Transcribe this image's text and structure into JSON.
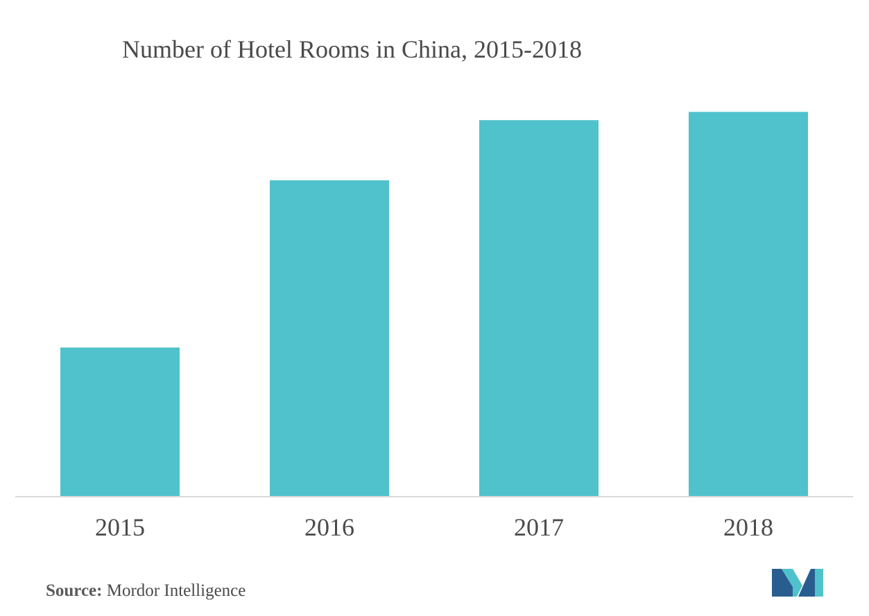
{
  "chart_data": {
    "type": "bar",
    "title": "Number of Hotel Rooms in China, 2015-2018",
    "categories": [
      "2015",
      "2016",
      "2017",
      "2018"
    ],
    "values": [
      39.5,
      84,
      100,
      102.2
    ],
    "ylim": [
      0,
      110
    ],
    "xlabel": "",
    "ylabel": "",
    "grid": false,
    "legend": "none",
    "bar_color": "#50c2cb"
  },
  "source": {
    "label": "Source:",
    "text": "Mordor Intelligence"
  },
  "logo": {
    "icon": "mordor-intelligence-logo-icon",
    "colors": [
      "#2a5d8f",
      "#50c2cb"
    ]
  }
}
